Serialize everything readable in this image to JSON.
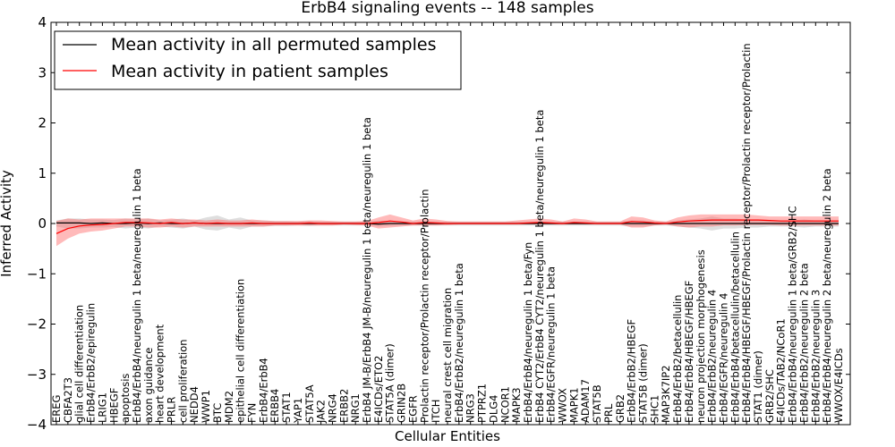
{
  "chart_data": {
    "type": "line",
    "title": "ErbB4 signaling events -- 148 samples",
    "xlabel": "Cellular Entities",
    "ylabel": "Inferred Activity",
    "ylim": [
      -4,
      4
    ],
    "yticks": [
      "4",
      "3",
      "2",
      "1",
      "0",
      "−1",
      "−2",
      "−3",
      "−4"
    ],
    "grid": false,
    "legend_position": "top-left",
    "categories": [
      "EREG",
      "CBFA2T3",
      "glial cell differentiation",
      "ErbB4/ErbB2/epiregulin",
      "LRIG1",
      "HBEGF",
      "apoptosis",
      "ErbB4/ErbB4/neuregulin 1 beta/neuregulin 1 beta",
      "axon guidance",
      "heart development",
      "PRLR",
      "cell proliferation",
      "NEDD4",
      "WWP1",
      "BTC",
      "MDM2",
      "epithelial cell differentiation",
      "FYN",
      "ErbB4/ErbB4",
      "ERBB4",
      "STAT1",
      "YAP1",
      "STAT5A",
      "JAK2",
      "NRG4",
      "ERBB2",
      "NRG1",
      "ErbB4 JM-B/ErbB4 JM-B/neuregulin 1 beta/neuregulin 1 beta",
      "E4ICDs/ETO2",
      "STAT5A (dimer)",
      "GRIN2B",
      "EGFR",
      "Prolactin receptor/Prolactin receptor/Prolactin",
      "ITCH",
      "neural crest cell migration",
      "ErbB4/ErbB2/neuregulin 1 beta",
      "NRG3",
      "PTPRZ1",
      "DLG4",
      "NCOR1",
      "MAPK3",
      "ErbB4/ErbB4/neuregulin 1 beta/Fyn",
      "ErbB4 CYT2/ErbB4 CYT2/neuregulin 1 beta/neuregulin 1 beta",
      "ErbB4/EGFR/neuregulin 1 beta",
      "WWOX",
      "MAPK1",
      "ADAM17",
      "STAT5B",
      "PRL",
      "GRB2",
      "ErbB4/ErbB2/HBEGF",
      "STAT5B (dimer)",
      "SHC1",
      "MAP3K7IP2",
      "ErbB4/ErbB2/betacellulin",
      "ErbB4/ErbB4/HBEGF/HBEGF",
      "neuron projection morphogenesis",
      "ErbB4/ErbB2/neuregulin 4",
      "ErbB4/EGFR/neuregulin 4",
      "ErbB4/ErbB4/betacellulin/betacellulin",
      "ErbB4/ErbB4/HBEGF/HBEGF/Prolactin receptor/Prolactin receptor/Prolactin",
      "STAT1 (dimer)",
      "GRB2/SHC",
      "E4ICDs/TAB2/NCoR1",
      "ErbB4/ErbB4/neuregulin 1 beta/GRB2/SHC",
      "ErbB4/ErbB2/neuregulin 2 beta",
      "ErbB4/ErbB2/neuregulin 3",
      "ErbB4/ErbB4/neuregulin 2 beta/neuregulin 2 beta",
      "WWOX/E4ICDs"
    ],
    "series": [
      {
        "name": "Mean activity in all permuted samples",
        "color": "#000000",
        "values": [
          0.01,
          0.01,
          0.01,
          0.0,
          0.01,
          0.0,
          0.0,
          0.01,
          0.0,
          0.01,
          0.0,
          0.0,
          0.01,
          0.0,
          0.0,
          0.0,
          0.0,
          0.0,
          0.0,
          0.0,
          0.0,
          0.0,
          0.0,
          0.0,
          0.0,
          0.0,
          0.0,
          0.0,
          -0.01,
          0.0,
          0.0,
          0.0,
          0.0,
          0.0,
          0.0,
          0.0,
          0.0,
          0.0,
          0.0,
          0.0,
          0.0,
          0.0,
          0.0,
          0.0,
          0.0,
          0.0,
          0.0,
          0.0,
          0.0,
          0.0,
          0.0,
          0.0,
          0.0,
          0.0,
          0.0,
          0.0,
          0.0,
          0.0,
          0.0,
          0.0,
          0.0,
          0.0,
          0.0,
          0.0,
          0.0,
          0.0,
          0.0,
          0.0,
          0.0
        ],
        "lower": [
          -0.06,
          -0.1,
          -0.1,
          -0.08,
          -0.08,
          -0.07,
          -0.1,
          -0.08,
          -0.1,
          -0.06,
          -0.08,
          -0.1,
          -0.06,
          -0.12,
          -0.14,
          -0.08,
          -0.12,
          -0.06,
          -0.06,
          -0.05,
          -0.05,
          -0.04,
          -0.05,
          -0.04,
          -0.04,
          -0.04,
          -0.04,
          -0.04,
          -0.06,
          -0.05,
          -0.04,
          -0.04,
          -0.04,
          -0.04,
          -0.04,
          -0.04,
          -0.04,
          -0.04,
          -0.04,
          -0.04,
          -0.04,
          -0.04,
          -0.04,
          -0.04,
          -0.04,
          -0.04,
          -0.04,
          -0.04,
          -0.04,
          -0.04,
          -0.06,
          -0.06,
          -0.04,
          -0.04,
          -0.06,
          -0.08,
          -0.1,
          -0.14,
          -0.1,
          -0.1,
          -0.08,
          -0.08,
          -0.06,
          -0.06,
          -0.06,
          -0.08,
          -0.06,
          -0.06,
          -0.06
        ],
        "upper": [
          0.06,
          0.1,
          0.1,
          0.08,
          0.08,
          0.07,
          0.1,
          0.08,
          0.1,
          0.06,
          0.08,
          0.1,
          0.06,
          0.12,
          0.16,
          0.08,
          0.12,
          0.06,
          0.06,
          0.05,
          0.05,
          0.04,
          0.05,
          0.04,
          0.04,
          0.04,
          0.04,
          0.04,
          0.06,
          0.05,
          0.04,
          0.04,
          0.04,
          0.04,
          0.04,
          0.04,
          0.04,
          0.04,
          0.04,
          0.04,
          0.04,
          0.04,
          0.04,
          0.04,
          0.04,
          0.04,
          0.04,
          0.04,
          0.04,
          0.04,
          0.06,
          0.06,
          0.04,
          0.04,
          0.06,
          0.08,
          0.1,
          0.14,
          0.1,
          0.1,
          0.08,
          0.08,
          0.06,
          0.06,
          0.06,
          0.08,
          0.06,
          0.06,
          0.06
        ]
      },
      {
        "name": "Mean activity in patient samples",
        "color": "#ff0000",
        "values": [
          -0.2,
          -0.1,
          -0.05,
          -0.03,
          -0.02,
          0.0,
          0.02,
          0.02,
          0.01,
          0.0,
          0.02,
          0.0,
          0.01,
          0.0,
          0.01,
          0.0,
          0.0,
          0.01,
          0.0,
          0.0,
          0.0,
          0.0,
          0.01,
          0.0,
          0.0,
          0.0,
          0.0,
          0.0,
          0.02,
          0.05,
          0.03,
          0.0,
          0.02,
          0.01,
          0.0,
          0.0,
          0.0,
          0.0,
          0.0,
          0.0,
          0.0,
          0.01,
          0.02,
          0.01,
          0.0,
          0.02,
          0.01,
          0.0,
          0.0,
          0.0,
          0.04,
          0.03,
          0.01,
          0.0,
          0.03,
          0.05,
          0.06,
          0.07,
          0.07,
          0.07,
          0.07,
          0.07,
          0.06,
          0.05,
          0.05,
          0.05,
          0.05,
          0.05,
          0.05
        ],
        "lower": [
          -0.45,
          -0.3,
          -0.2,
          -0.16,
          -0.14,
          -0.1,
          -0.06,
          -0.06,
          -0.08,
          -0.08,
          -0.06,
          -0.08,
          -0.06,
          -0.06,
          -0.06,
          -0.06,
          -0.06,
          -0.06,
          -0.06,
          -0.04,
          -0.04,
          -0.04,
          -0.04,
          -0.04,
          -0.04,
          -0.02,
          -0.03,
          -0.04,
          -0.1,
          -0.08,
          -0.06,
          -0.04,
          -0.04,
          -0.04,
          -0.03,
          -0.02,
          -0.02,
          -0.02,
          -0.02,
          -0.02,
          -0.02,
          -0.02,
          -0.02,
          -0.02,
          -0.02,
          -0.02,
          -0.02,
          -0.02,
          -0.02,
          -0.02,
          -0.08,
          -0.08,
          -0.04,
          -0.02,
          -0.06,
          -0.08,
          -0.06,
          -0.06,
          -0.04,
          -0.04,
          -0.03,
          -0.03,
          -0.03,
          -0.04,
          -0.04,
          -0.04,
          -0.04,
          -0.04,
          -0.04
        ],
        "upper": [
          0.05,
          0.1,
          0.08,
          0.1,
          0.1,
          0.1,
          0.1,
          0.1,
          0.1,
          0.08,
          0.1,
          0.08,
          0.08,
          0.06,
          0.08,
          0.06,
          0.06,
          0.08,
          0.06,
          0.05,
          0.05,
          0.05,
          0.06,
          0.06,
          0.05,
          0.04,
          0.04,
          0.05,
          0.12,
          0.18,
          0.12,
          0.06,
          0.1,
          0.08,
          0.05,
          0.04,
          0.04,
          0.04,
          0.04,
          0.04,
          0.06,
          0.08,
          0.1,
          0.08,
          0.04,
          0.1,
          0.08,
          0.04,
          0.04,
          0.04,
          0.14,
          0.12,
          0.06,
          0.04,
          0.12,
          0.16,
          0.18,
          0.18,
          0.18,
          0.18,
          0.18,
          0.16,
          0.14,
          0.14,
          0.14,
          0.14,
          0.14,
          0.14,
          0.14
        ]
      }
    ]
  }
}
